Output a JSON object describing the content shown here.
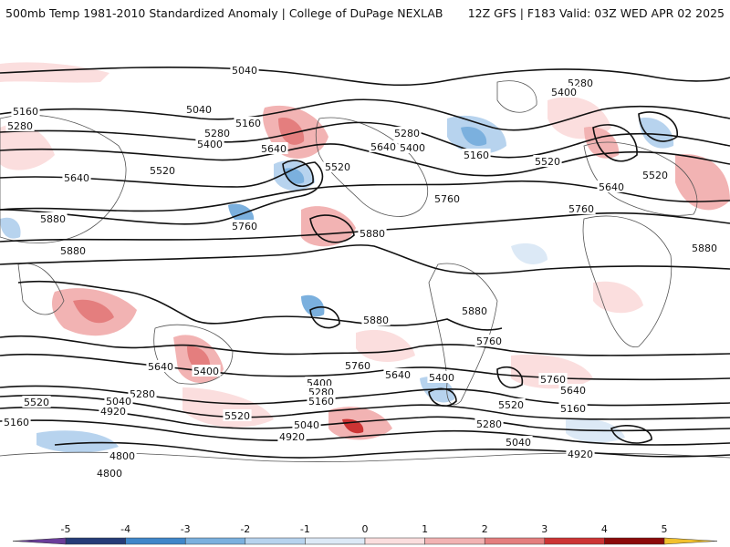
{
  "header": {
    "title": "500mb Temp 1981-2010 Standardized Anomaly | College of DuPage NEXLAB",
    "run_info": "12Z GFS | F183 Valid: 03Z WED APR 02 2025"
  },
  "colors": {
    "negative": [
      "#6a3d9a",
      "#253c78",
      "#3f86c9",
      "#7bb0de",
      "#b7d3ee",
      "#dce9f6"
    ],
    "positive": [
      "#fbdede",
      "#f2b3b3",
      "#e47e7e",
      "#cc3434",
      "#8b0a0a",
      "#f2c12e"
    ],
    "contour": "#111111",
    "coast": "#555555"
  },
  "contour_labels": [
    {
      "text": "5040"
    },
    {
      "text": "5040"
    },
    {
      "text": "5160"
    },
    {
      "text": "5280"
    },
    {
      "text": "5160"
    },
    {
      "text": "5280"
    },
    {
      "text": "5400"
    },
    {
      "text": "5520"
    },
    {
      "text": "5640"
    },
    {
      "text": "5640"
    },
    {
      "text": "5520"
    },
    {
      "text": "5760"
    },
    {
      "text": "5880"
    },
    {
      "text": "5880"
    },
    {
      "text": "5880"
    },
    {
      "text": "5280"
    },
    {
      "text": "5400"
    },
    {
      "text": "5160"
    },
    {
      "text": "5520"
    },
    {
      "text": "5640"
    },
    {
      "text": "5760"
    },
    {
      "text": "5280"
    },
    {
      "text": "5400"
    },
    {
      "text": "5520"
    },
    {
      "text": "5640"
    },
    {
      "text": "5760"
    },
    {
      "text": "5880"
    },
    {
      "text": "5880"
    },
    {
      "text": "5880"
    },
    {
      "text": "5760"
    },
    {
      "text": "5640"
    },
    {
      "text": "5760"
    },
    {
      "text": "5640"
    },
    {
      "text": "5400"
    },
    {
      "text": "5280"
    },
    {
      "text": "5040"
    },
    {
      "text": "4920"
    },
    {
      "text": "5520"
    },
    {
      "text": "5160"
    },
    {
      "text": "5520"
    },
    {
      "text": "5400"
    },
    {
      "text": "5280"
    },
    {
      "text": "5160"
    },
    {
      "text": "5040"
    },
    {
      "text": "4920"
    },
    {
      "text": "5400"
    },
    {
      "text": "5280"
    },
    {
      "text": "5520"
    },
    {
      "text": "5160"
    },
    {
      "text": "5760"
    },
    {
      "text": "5640"
    },
    {
      "text": "5040"
    },
    {
      "text": "4920"
    },
    {
      "text": "4800"
    },
    {
      "text": "4800"
    }
  ],
  "colorbar": {
    "ticks": [
      "-5",
      "-4",
      "-3",
      "-2",
      "-1",
      "0",
      "1",
      "2",
      "3",
      "4",
      "5"
    ]
  }
}
